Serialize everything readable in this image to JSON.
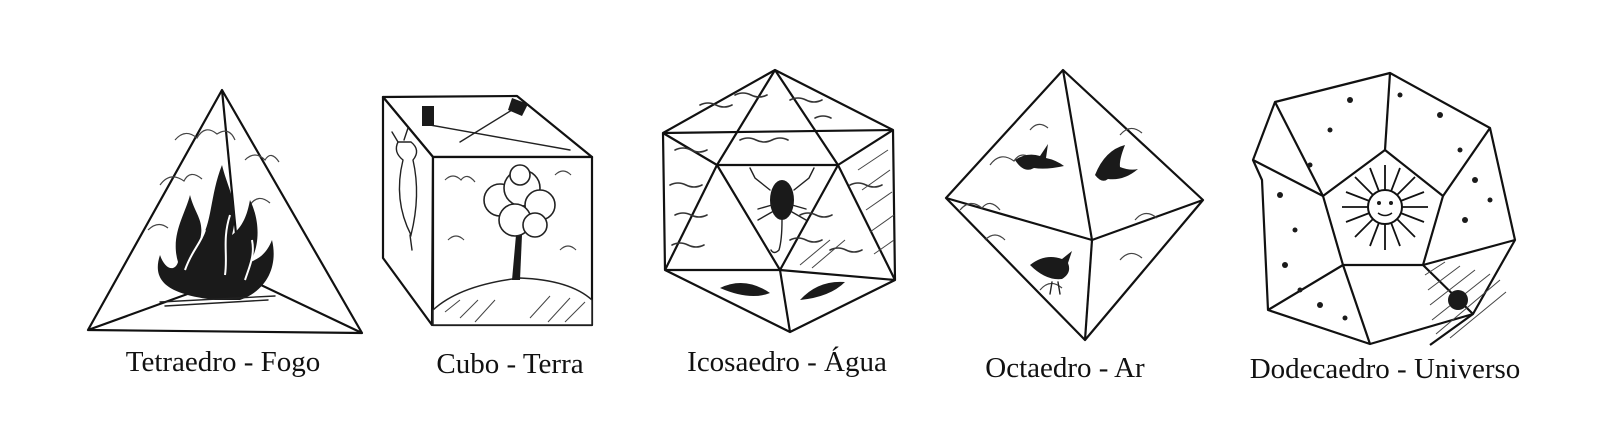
{
  "solids": [
    {
      "caption": "Tetraedro - Fogo",
      "icon": "fire-icon"
    },
    {
      "caption": "Cubo - Terra",
      "icon": "tree-icon"
    },
    {
      "caption": "Icosaedro - Água",
      "icon": "scorpion-icon"
    },
    {
      "caption": "Octaedro - Ar",
      "icon": "bird-icon"
    },
    {
      "caption": "Dodecaedro - Universo",
      "icon": "sun-icon"
    }
  ]
}
